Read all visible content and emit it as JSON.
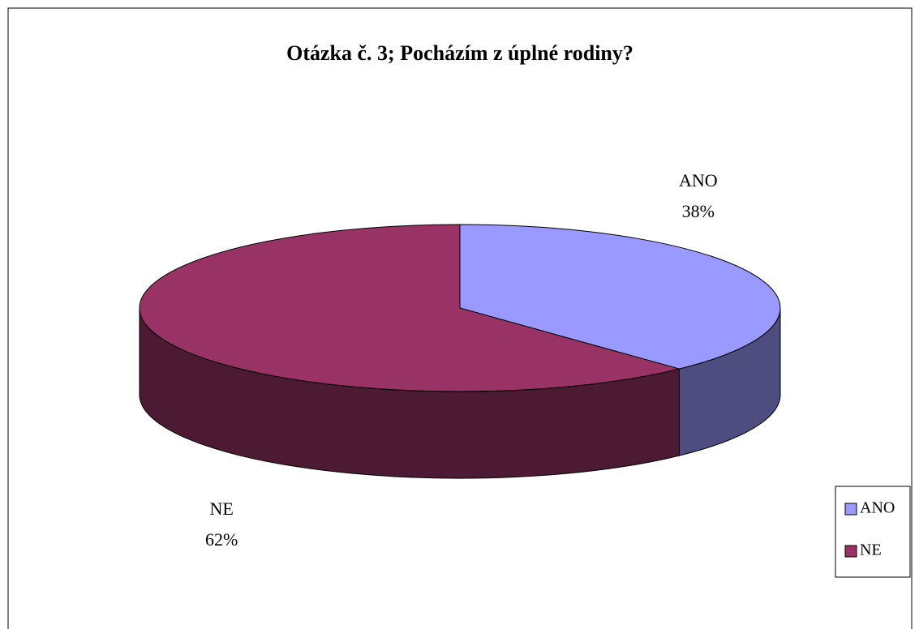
{
  "chart_data": {
    "type": "pie3d",
    "title": "Otázka č. 3; Pocházím z úplné rodiny?",
    "categories": [
      "ANO",
      "NE"
    ],
    "values": [
      38,
      62
    ],
    "value_labels": [
      "38%",
      "62%"
    ],
    "colors": [
      "#9999ff",
      "#993366"
    ],
    "legend": "right"
  }
}
